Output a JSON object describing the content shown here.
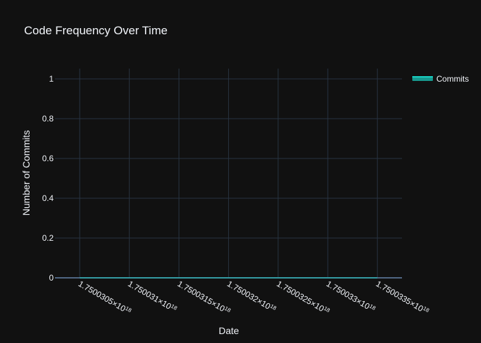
{
  "chart_data": {
    "type": "area",
    "title": "Code Frequency Over Time",
    "xlabel": "Date",
    "ylabel": "Number of Commits",
    "x_ticks": [
      {
        "mantissa": "1.750030",
        "display_mantissa": "1.7500305",
        "exponent": "18"
      },
      {
        "mantissa": "1.750031",
        "display_mantissa": "1.750031",
        "exponent": "18"
      },
      {
        "mantissa": "1.7500315",
        "display_mantissa": "1.7500315",
        "exponent": "18"
      },
      {
        "mantissa": "1.750032",
        "display_mantissa": "1.750032",
        "exponent": "18"
      },
      {
        "mantissa": "1.7500325",
        "display_mantissa": "1.7500325",
        "exponent": "18"
      },
      {
        "mantissa": "1.750033",
        "display_mantissa": "1.750033",
        "exponent": "18"
      },
      {
        "mantissa": "1.7500335",
        "display_mantissa": "1.7500335",
        "exponent": "18"
      }
    ],
    "y_ticks": [
      "0",
      "0.2",
      "0.4",
      "0.6",
      "0.8",
      "1"
    ],
    "ylim": [
      0,
      1
    ],
    "grid": true,
    "legend_placement": "top-right",
    "series": [
      {
        "name": "Commits",
        "values": [
          0,
          0,
          0,
          0,
          0,
          0,
          0
        ],
        "color": "#19d3c5"
      }
    ]
  },
  "colors": {
    "background": "#111111",
    "grid": "#283442",
    "text": "#f2f5fa",
    "series": "#19d3c5"
  }
}
